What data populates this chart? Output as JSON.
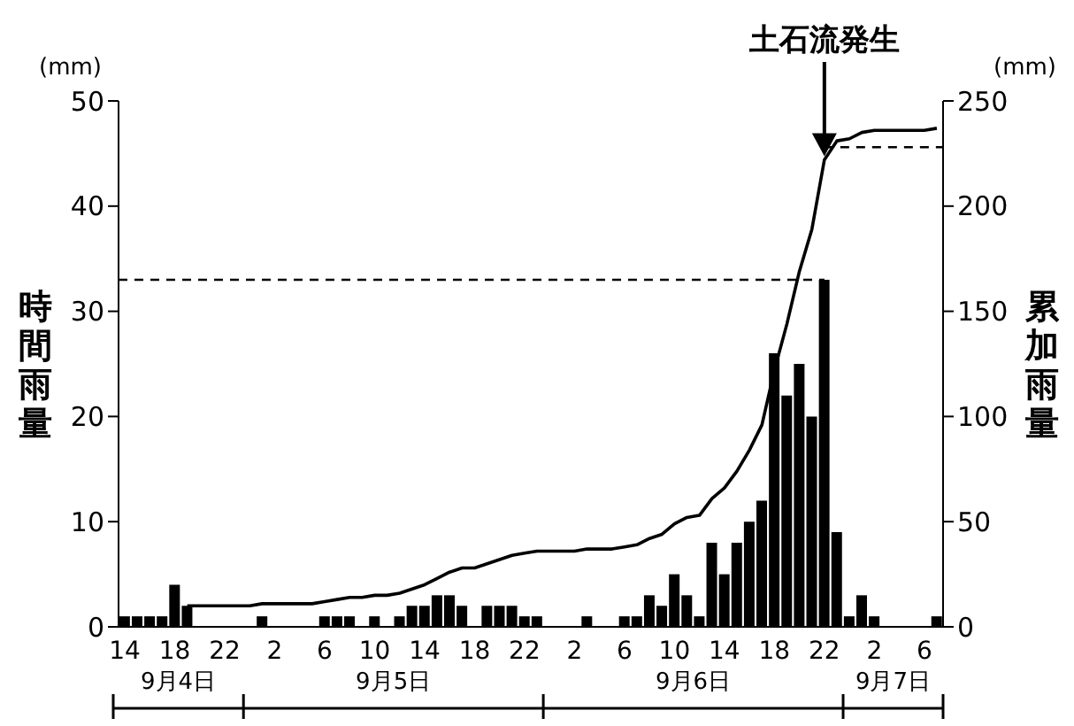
{
  "chart_data": {
    "type": "bar",
    "ylabel": "時間雨量",
    "y2label": "累加雨量",
    "annotations": [
      "土石流発生",
      "(mm)",
      "(mm)",
      "9月4日",
      "9月5日",
      "9月6日",
      "9月7日"
    ],
    "categories": [
      "14",
      null,
      null,
      null,
      "18",
      null,
      null,
      null,
      "22",
      null,
      null,
      null,
      "2",
      null,
      null,
      null,
      "6",
      null,
      null,
      null,
      "10",
      null,
      null,
      null,
      "14",
      null,
      null,
      null,
      "18",
      null,
      null,
      null,
      "22",
      null,
      null,
      null,
      "2",
      null,
      null,
      null,
      "6",
      null,
      null,
      null,
      "10",
      null,
      null,
      null,
      "14",
      null,
      null,
      null,
      "18",
      null,
      null,
      null,
      "22",
      null,
      null,
      null,
      "2",
      null,
      null,
      null,
      "6",
      null
    ],
    "series": [
      {
        "color": "#000000",
        "values": [
          1,
          1,
          1,
          1,
          4,
          2,
          0,
          0,
          0,
          0,
          0,
          1,
          0,
          0,
          0,
          0,
          1,
          1,
          1,
          0,
          1,
          0,
          1,
          2,
          2,
          3,
          3,
          2,
          0,
          2,
          2,
          2,
          1,
          1,
          0,
          0,
          0,
          1,
          0,
          0,
          1,
          1,
          3,
          2,
          5,
          3,
          1,
          8,
          5,
          8,
          10,
          12,
          26,
          22,
          25,
          20,
          33,
          9,
          1,
          3,
          1,
          0,
          0,
          0,
          0,
          1
        ]
      },
      {
        "type": "line",
        "axis": "y2",
        "color": "#000000",
        "values": [
          null,
          null,
          null,
          null,
          null,
          10,
          10,
          10,
          10,
          10,
          10,
          11,
          11,
          11,
          11,
          11,
          12,
          13,
          14,
          14,
          15,
          15,
          16,
          18,
          20,
          23,
          26,
          28,
          28,
          30,
          32,
          34,
          35,
          36,
          36,
          36,
          36,
          37,
          37,
          37,
          38,
          39,
          42,
          44,
          49,
          52,
          53,
          61,
          66,
          74,
          84,
          96,
          122,
          144,
          169,
          189,
          222,
          231,
          232,
          235,
          236,
          236,
          236,
          236,
          236,
          237
        ]
      }
    ],
    "ylim": [
      0,
      50
    ],
    "yticks": [
      0,
      10,
      20,
      30,
      40,
      50
    ],
    "y2lim": [
      0,
      250
    ],
    "y2ticks": [
      0,
      50,
      100,
      150,
      200,
      250
    ],
    "ref_lines": [
      {
        "axis": "y",
        "value": 33,
        "line_style": "dashed"
      },
      {
        "axis": "y2",
        "value": 228,
        "line_style": "dashed"
      }
    ]
  }
}
